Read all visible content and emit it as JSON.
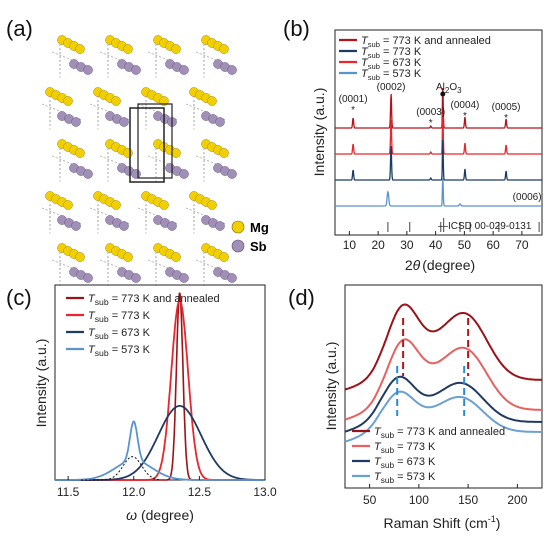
{
  "panel_labels": [
    "(a)",
    "(b)",
    "(c)",
    "(d)"
  ],
  "crystal": {
    "atoms": [
      {
        "label": "Mg",
        "color": "#f2cf00"
      },
      {
        "label": "Sb",
        "color": "#a090b8"
      }
    ]
  },
  "chart_data": [
    {
      "panel": "(b)",
      "type": "line",
      "xlabel_main": "2",
      "xlabel_symbol": "θ",
      "xlabel_unit": "(degree)",
      "ylabel": "Intensity (a.u.)",
      "xlim": [
        5,
        77
      ],
      "xticks": [
        "10",
        "20",
        "30",
        "40",
        "50",
        "60",
        "70"
      ],
      "xtick_values": [
        10,
        20,
        30,
        40,
        50,
        60,
        70
      ],
      "series": [
        {
          "name_main": "T",
          "name_sub": "sub",
          "name_rest": " = 773 K and annealed",
          "color": "#b3141c"
        },
        {
          "name_main": "T",
          "name_sub": "sub",
          "name_rest": " = 773 K",
          "color": "#1f3b63"
        },
        {
          "name_main": "T",
          "name_sub": "sub",
          "name_rest": " = 673 K",
          "color": "#e8262b"
        },
        {
          "name_main": "T",
          "name_sub": "sub",
          "name_rest": " = 573 K",
          "color": "#5a94cc"
        }
      ],
      "trace_order": [
        0,
        2,
        1,
        3
      ],
      "peaks": [
        11.3,
        24.5,
        38.3,
        42.5,
        50.2,
        64.5
      ],
      "peak_labels": [
        {
          "text": "(0001)",
          "x": 11.3
        },
        {
          "text": "(0002)",
          "x": 24.5
        },
        {
          "text": "(0003)",
          "x": 38.3
        },
        {
          "text": "(0004)",
          "x": 50.2
        },
        {
          "text": "(0005)",
          "x": 64.5
        },
        {
          "text": "(0006)",
          "x": 76
        }
      ],
      "al2o3_label": {
        "main": "Al",
        "sub1": "2",
        "mid": "O",
        "sub2": "3",
        "x": 42.5
      },
      "reference": {
        "text": "—ICSD 00-029-0131",
        "peaks": [
          23.4,
          31,
          41.8,
          42.8,
          48.5,
          52,
          62,
          76
        ]
      }
    },
    {
      "panel": "(c)",
      "type": "line",
      "xlabel": "(degree)",
      "xlabel_symbol": "ω",
      "ylabel": "Intensity (a.u.)",
      "xlim": [
        11.4,
        13.0
      ],
      "xticks": [
        "11.5",
        "12.0",
        "12.5",
        "13.0"
      ],
      "xtick_values": [
        11.5,
        12.0,
        12.5,
        13.0
      ],
      "series": [
        {
          "name_main": "T",
          "name_sub": "sub",
          "name_rest": " = 773 K and annealed",
          "color": "#9b1218",
          "center": 12.35,
          "width": 0.035,
          "height": 0.96,
          "base": 0.0
        },
        {
          "name_main": "T",
          "name_sub": "sub",
          "name_rest": " = 773 K",
          "color": "#e8262b",
          "center": 12.35,
          "width": 0.09,
          "height": 0.92,
          "base": 0.0
        },
        {
          "name_main": "T",
          "name_sub": "sub",
          "name_rest": " = 673 K",
          "color": "#1f3b63",
          "center": 12.35,
          "width": 0.23,
          "height": 0.38,
          "base": 0.0
        },
        {
          "name_main": "T",
          "name_sub": "sub",
          "name_rest": " = 573 K",
          "color": "#5a94cc",
          "center": 12.0,
          "width": 0.04,
          "height": 0.2,
          "base": 0.0,
          "broad_center": 12.0,
          "broad_width": 0.2,
          "broad_height": 0.1
        }
      ]
    },
    {
      "panel": "(d)",
      "type": "line",
      "xlabel_main": "Raman Shift (cm",
      "xlabel_sup": "-1",
      "xlabel_end": ")",
      "ylabel": "Intensity (a.u.)",
      "xlim": [
        25,
        225
      ],
      "xticks": [
        "50",
        "100",
        "150",
        "200"
      ],
      "xtick_values": [
        50,
        100,
        150,
        200
      ],
      "series": [
        {
          "name_main": "T",
          "name_sub": "sub",
          "name_rest": " = 773 K and annealed",
          "color": "#9b1218",
          "offset": 0.0
        },
        {
          "name_main": "T",
          "name_sub": "sub",
          "name_rest": " = 773 K",
          "color": "#e86060",
          "offset": 1.0
        },
        {
          "name_main": "T",
          "name_sub": "sub",
          "name_rest": " = 673 K",
          "color": "#1f3b63",
          "offset": 2.0
        },
        {
          "name_main": "T",
          "name_sub": "sub",
          "name_rest": " = 573 K",
          "color": "#6aa0d2",
          "offset": 2.8
        }
      ],
      "dashed_red": [
        84,
        150
      ],
      "dashed_blue": [
        78,
        146
      ],
      "dashed_red_color": "#b3141c",
      "dashed_blue_color": "#2a8ad8"
    }
  ]
}
